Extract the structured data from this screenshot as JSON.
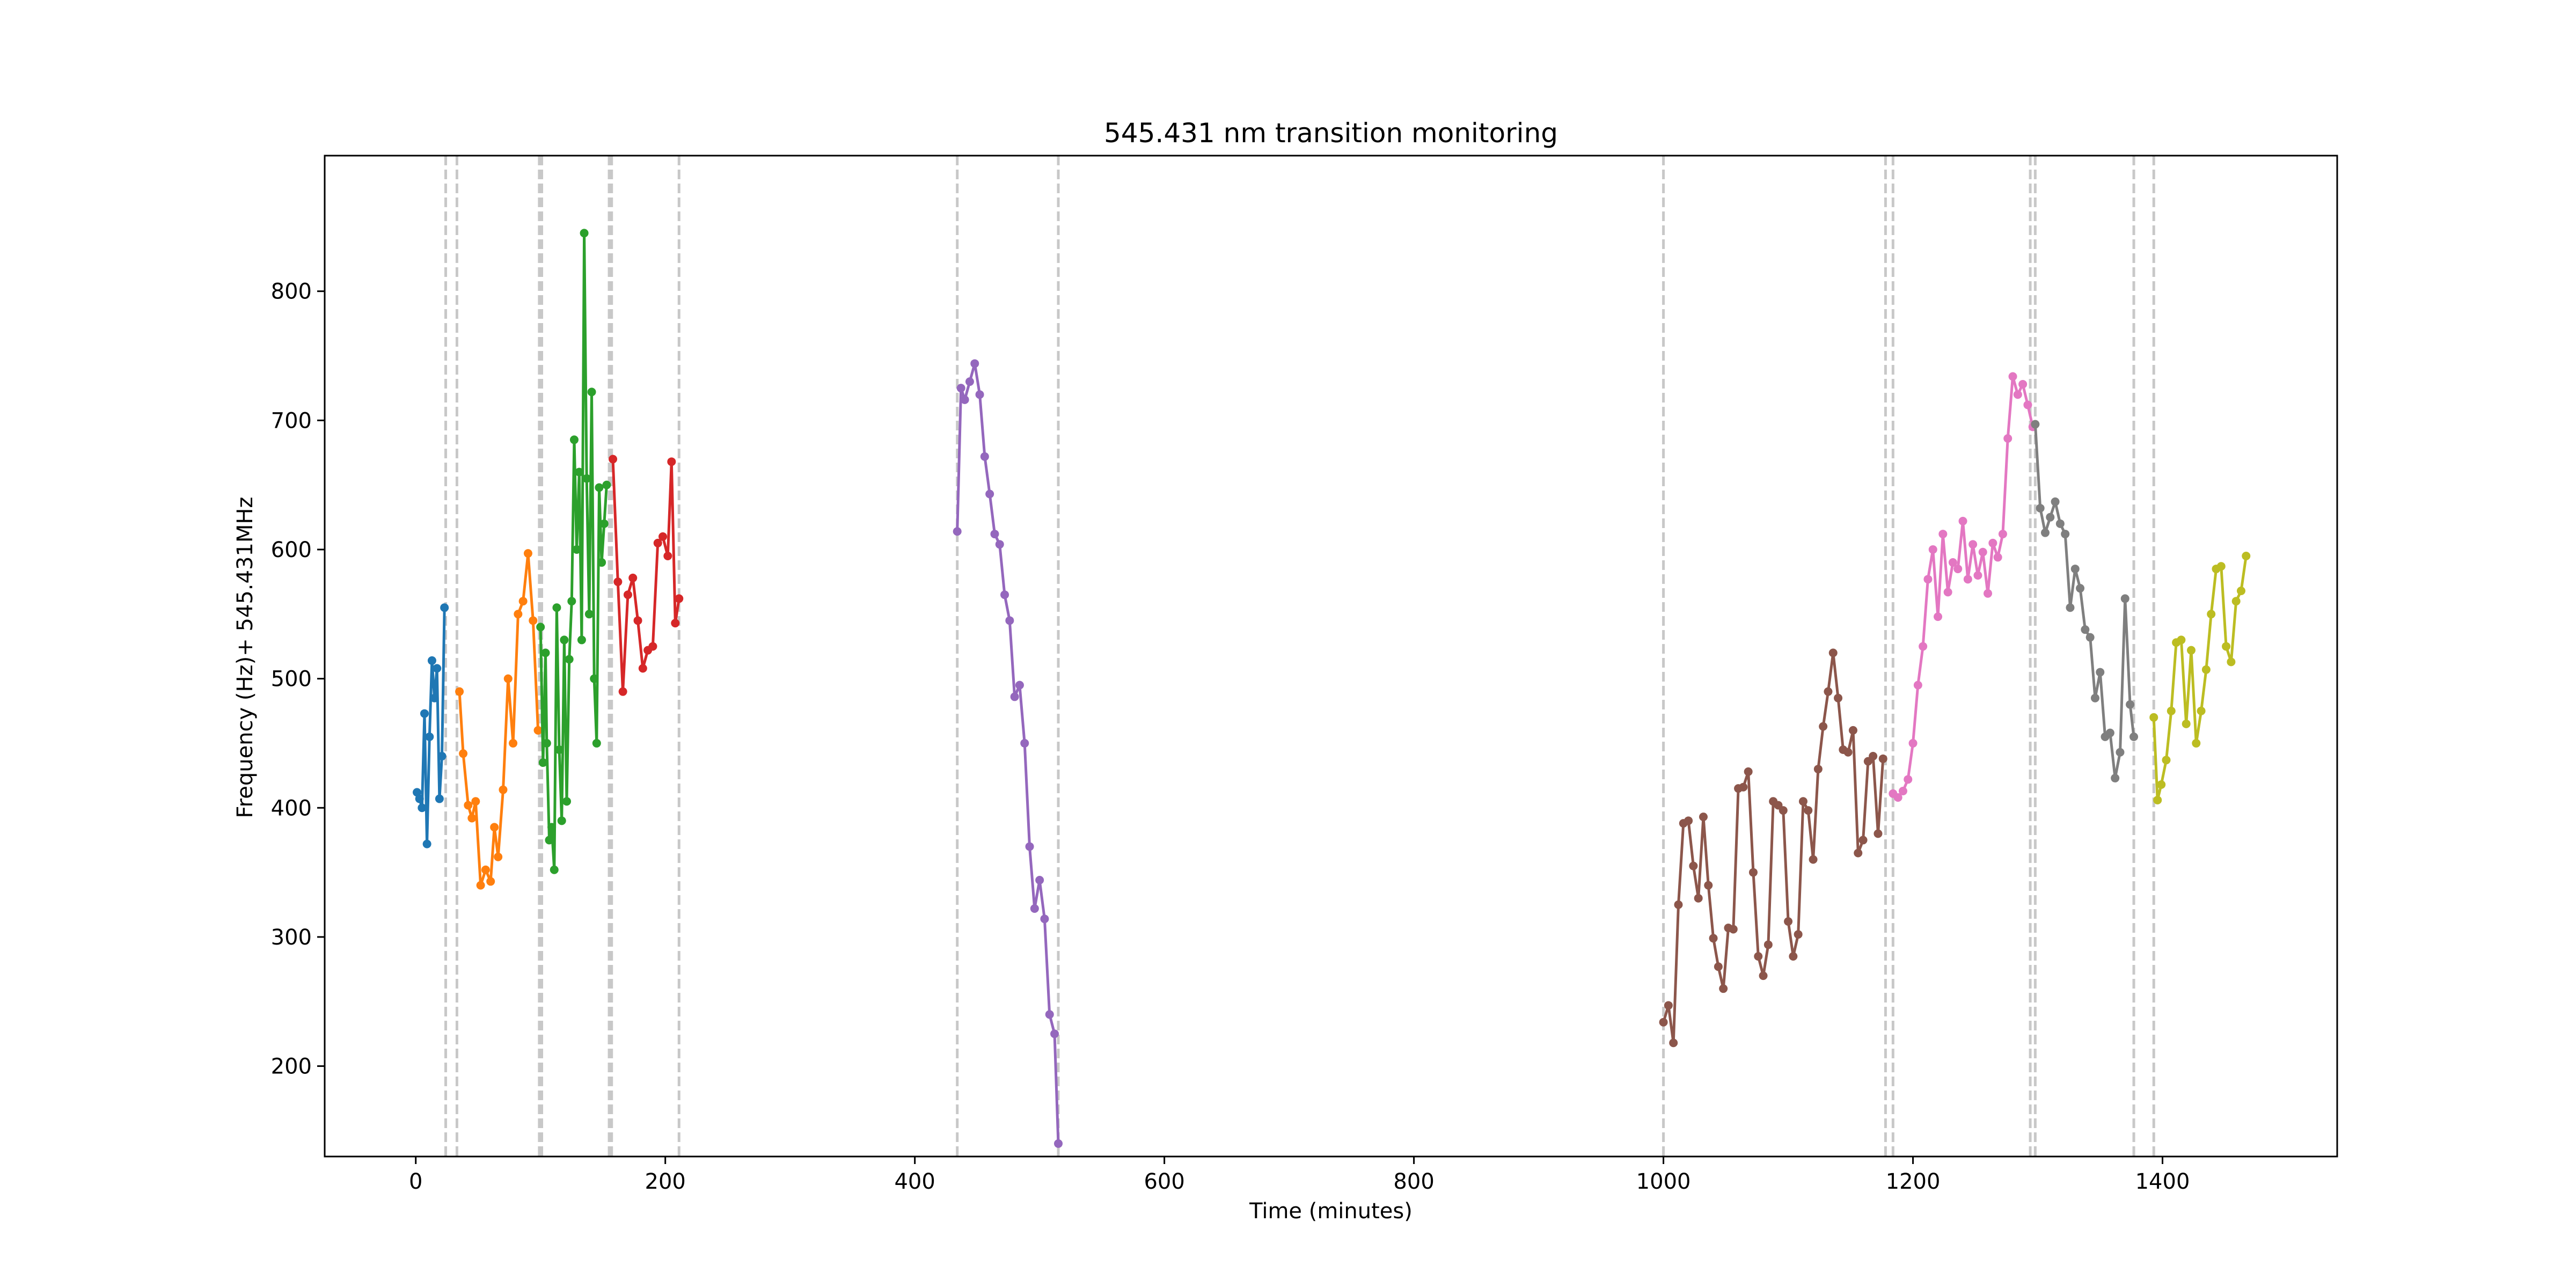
{
  "chart_data": {
    "type": "line",
    "title": "545.431 nm transition monitoring",
    "xlabel": "Time (minutes)",
    "ylabel": "Frequency (Hz)+ 545.431MHz",
    "xlim": [
      -73,
      1540
    ],
    "ylim": [
      130,
      905
    ],
    "x_ticks": [
      0,
      200,
      400,
      600,
      800,
      1000,
      1200,
      1400
    ],
    "y_ticks": [
      200,
      300,
      400,
      500,
      600,
      700,
      800
    ],
    "grid": false,
    "legend": "none",
    "markers": "dots",
    "vlines": [
      24,
      33,
      99,
      101,
      155,
      157,
      211,
      434,
      515,
      1000,
      1178,
      1184,
      1294,
      1298,
      1377,
      1393
    ],
    "vline_color": "#c8c8c8",
    "series": [
      {
        "color": "#1f77b4",
        "x": [
          1,
          3,
          5,
          7,
          9,
          11,
          13,
          15,
          17,
          19,
          21,
          23
        ],
        "y": [
          412,
          407,
          400,
          473,
          372,
          455,
          514,
          485,
          508,
          407,
          440,
          555
        ]
      },
      {
        "color": "#ff7f0e",
        "x": [
          35,
          38,
          42,
          45,
          48,
          52,
          56,
          60,
          63,
          66,
          70,
          74,
          78,
          82,
          86,
          90,
          94,
          98
        ],
        "y": [
          490,
          442,
          402,
          392,
          405,
          340,
          352,
          343,
          385,
          362,
          414,
          500,
          450,
          550,
          560,
          597,
          545,
          460
        ]
      },
      {
        "color": "#2ca02c",
        "x": [
          100,
          102,
          104,
          105,
          107,
          109,
          111,
          113,
          115,
          117,
          119,
          121,
          123,
          125,
          127,
          129,
          131,
          133,
          135,
          137,
          139,
          141,
          143,
          145,
          147,
          149,
          151,
          153
        ],
        "y": [
          540,
          435,
          520,
          450,
          375,
          385,
          352,
          555,
          445,
          390,
          530,
          405,
          515,
          560,
          685,
          600,
          660,
          530,
          845,
          655,
          550,
          722,
          500,
          450,
          648,
          590,
          620,
          650
        ]
      },
      {
        "color": "#d62728",
        "x": [
          158,
          162,
          166,
          170,
          174,
          178,
          182,
          186,
          190,
          194,
          198,
          202,
          205,
          208,
          211
        ],
        "y": [
          670,
          575,
          490,
          565,
          578,
          545,
          508,
          522,
          525,
          605,
          610,
          595,
          668,
          543,
          562
        ]
      },
      {
        "color": "#9467bd",
        "x": [
          434,
          437,
          440,
          444,
          448,
          452,
          456,
          460,
          464,
          468,
          472,
          476,
          480,
          484,
          488,
          492,
          496,
          500,
          504,
          508,
          512,
          515
        ],
        "y": [
          614,
          725,
          716,
          730,
          744,
          720,
          672,
          643,
          612,
          604,
          565,
          545,
          486,
          495,
          450,
          370,
          322,
          344,
          314,
          240,
          225,
          140
        ]
      },
      {
        "color": "#8c564b",
        "x": [
          1000,
          1004,
          1008,
          1012,
          1016,
          1020,
          1024,
          1028,
          1032,
          1036,
          1040,
          1044,
          1048,
          1052,
          1056,
          1060,
          1064,
          1068,
          1072,
          1076,
          1080,
          1084,
          1088,
          1092,
          1096,
          1100,
          1104,
          1108,
          1112,
          1116,
          1120,
          1124,
          1128,
          1132,
          1136,
          1140,
          1144,
          1148,
          1152,
          1156,
          1160,
          1164,
          1168,
          1172,
          1176
        ],
        "y": [
          234,
          247,
          218,
          325,
          388,
          390,
          355,
          330,
          393,
          340,
          299,
          277,
          260,
          307,
          306,
          415,
          416,
          428,
          350,
          285,
          270,
          294,
          405,
          402,
          398,
          312,
          285,
          302,
          405,
          398,
          360,
          430,
          463,
          490,
          520,
          485,
          445,
          443,
          460,
          365,
          375,
          436,
          440,
          380,
          438
        ]
      },
      {
        "color": "#e377c2",
        "x": [
          1184,
          1188,
          1192,
          1196,
          1200,
          1204,
          1208,
          1212,
          1216,
          1220,
          1224,
          1228,
          1232,
          1236,
          1240,
          1244,
          1248,
          1252,
          1256,
          1260,
          1264,
          1268,
          1272,
          1276,
          1280,
          1284,
          1288,
          1292,
          1296
        ],
        "y": [
          411,
          408,
          413,
          422,
          450,
          495,
          525,
          577,
          600,
          548,
          612,
          567,
          590,
          585,
          622,
          577,
          604,
          580,
          598,
          566,
          605,
          594,
          612,
          686,
          734,
          720,
          728,
          712,
          695
        ]
      },
      {
        "color": "#7f7f7f",
        "x": [
          1298,
          1302,
          1306,
          1310,
          1314,
          1318,
          1322,
          1326,
          1330,
          1334,
          1338,
          1342,
          1346,
          1350,
          1354,
          1358,
          1362,
          1366,
          1370,
          1374,
          1377
        ],
        "y": [
          697,
          632,
          613,
          625,
          637,
          620,
          612,
          555,
          585,
          570,
          538,
          532,
          485,
          505,
          455,
          458,
          423,
          443,
          562,
          480,
          455
        ]
      },
      {
        "color": "#bcbd22",
        "x": [
          1393,
          1396,
          1399,
          1403,
          1407,
          1411,
          1415,
          1419,
          1423,
          1427,
          1431,
          1435,
          1439,
          1443,
          1447,
          1451,
          1455,
          1459,
          1463,
          1467
        ],
        "y": [
          470,
          406,
          418,
          437,
          475,
          528,
          530,
          465,
          522,
          450,
          475,
          507,
          550,
          585,
          587,
          525,
          513,
          560,
          568,
          595
        ]
      }
    ]
  }
}
